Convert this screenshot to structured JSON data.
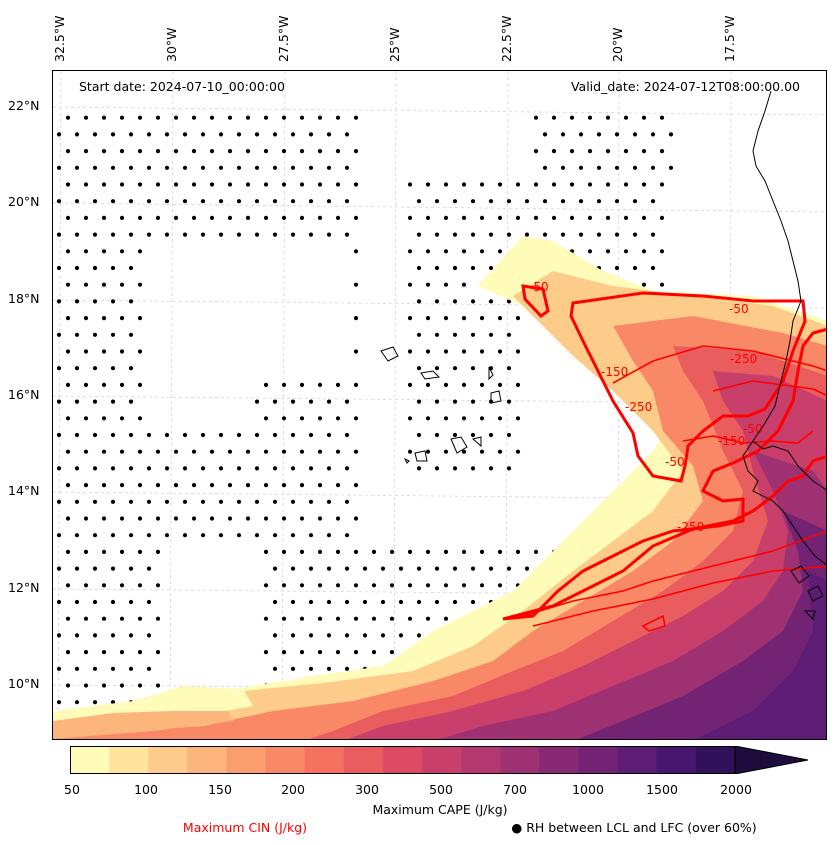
{
  "longitude_labels": [
    "32.5°W",
    "30°W",
    "27.5°W",
    "25°W",
    "22.5°W",
    "20°W",
    "17.5°W"
  ],
  "latitude_labels": [
    "22°N",
    "20°N",
    "18°N",
    "16°N",
    "14°N",
    "12°N",
    "10°N"
  ],
  "start_date": "Start date: 2024-07-10_00:00:00",
  "valid_date": "Valid_date: 2024-07-12T08:00:00.00",
  "contour_labels": [
    "-50",
    "-50",
    "-250",
    "-150",
    "-250",
    "-50",
    "-150",
    "-50",
    "-250"
  ],
  "colorbar": {
    "ticks": [
      "50",
      "100",
      "150",
      "200",
      "300",
      "500",
      "700",
      "1000",
      "1500",
      "2000"
    ],
    "colors": [
      "#fffbb8",
      "#fee49a",
      "#fdcc8a",
      "#fcb57b",
      "#fa9e70",
      "#f98866",
      "#f4725f",
      "#e95d5e",
      "#dc4b63",
      "#c83f6b",
      "#b3386f",
      "#9e3172",
      "#882a73",
      "#732374",
      "#5d1d74",
      "#47166e",
      "#31115a",
      "#1c0d3e"
    ],
    "title": "Maximum CAPE (J/kg)"
  },
  "cin_title": "Maximum CIN (J/kg)",
  "rh_title": "RH between LCL and LFC (over 60%)",
  "rh_marker": "●"
}
